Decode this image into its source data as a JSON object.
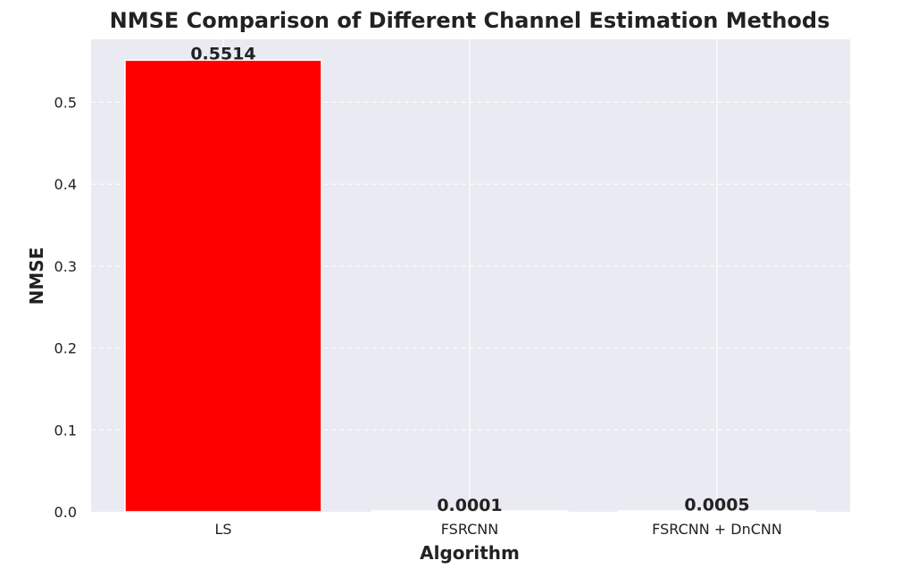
{
  "chart_data": {
    "type": "bar",
    "title": "NMSE Comparison of Different Channel Estimation Methods",
    "xlabel": "Algorithm",
    "ylabel": "NMSE",
    "categories": [
      "LS",
      "FSRCNN",
      "FSRCNN + DnCNN"
    ],
    "values": [
      0.5514,
      0.0001,
      0.0005
    ],
    "value_labels": [
      "0.5514",
      "0.0001",
      "0.0005"
    ],
    "bar_colors": [
      "#ff0000",
      "#ff0000",
      "#ff0000"
    ],
    "ylim": [
      0,
      0.58
    ],
    "yticks": [
      0.0,
      0.1,
      0.2,
      0.3,
      0.4,
      0.5
    ],
    "ytick_labels": [
      "0.0",
      "0.1",
      "0.2",
      "0.3",
      "0.4",
      "0.5"
    ],
    "grid": true,
    "grid_style": "dashed",
    "background_color": "#eaeaf2",
    "grid_color": "#ffffff"
  }
}
